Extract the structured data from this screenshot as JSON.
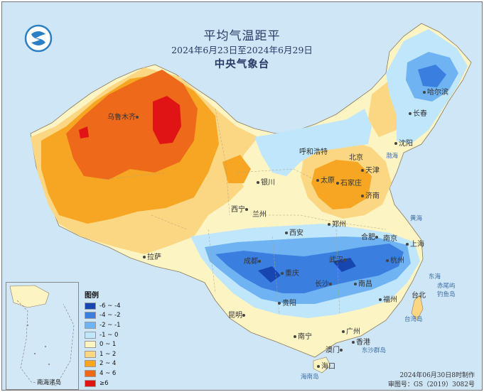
{
  "title": "平均气温距平",
  "period": "2024年6月23日至2024年6月29日",
  "agency": "中央气象台",
  "legend": {
    "title": "图例",
    "items": [
      {
        "label": "-6 ~ -4",
        "color": "#1746b0"
      },
      {
        "label": "-4 ~ -2",
        "color": "#3a7fe0"
      },
      {
        "label": "-2 ~ -1",
        "color": "#6fb3f2"
      },
      {
        "label": "-1 ~ 0",
        "color": "#bfe6fb"
      },
      {
        "label": "0 ~ 1",
        "color": "#fdf4c4"
      },
      {
        "label": "1 ~ 2",
        "color": "#fbd783"
      },
      {
        "label": "2 ~ 4",
        "color": "#f6a623"
      },
      {
        "label": "4 ~ 6",
        "color": "#ee6a1a"
      },
      {
        "label": "≥6",
        "color": "#e01414"
      }
    ]
  },
  "inset_label": "南海诸岛",
  "footer": {
    "made": "2024年06月30日8时制作",
    "review": "审图号：GS（2019）3082号"
  },
  "cities": [
    {
      "name": "乌鲁木齐"
    },
    {
      "name": "哈尔滨"
    },
    {
      "name": "长春"
    },
    {
      "name": "沈阳"
    },
    {
      "name": "呼和浩特"
    },
    {
      "name": "北京"
    },
    {
      "name": "天津"
    },
    {
      "name": "银川"
    },
    {
      "name": "太原"
    },
    {
      "name": "石家庄"
    },
    {
      "name": "济南"
    },
    {
      "name": "西宁"
    },
    {
      "name": "兰州"
    },
    {
      "name": "郑州"
    },
    {
      "name": "西安"
    },
    {
      "name": "合肥"
    },
    {
      "name": "南京"
    },
    {
      "name": "上海"
    },
    {
      "name": "拉萨"
    },
    {
      "name": "成都"
    },
    {
      "name": "武汉"
    },
    {
      "name": "杭州"
    },
    {
      "name": "重庆"
    },
    {
      "name": "长沙"
    },
    {
      "name": "南昌"
    },
    {
      "name": "贵阳"
    },
    {
      "name": "福州"
    },
    {
      "name": "台北"
    },
    {
      "name": "昆明"
    },
    {
      "name": "南宁"
    },
    {
      "name": "广州"
    },
    {
      "name": "香港"
    },
    {
      "name": "澳门"
    },
    {
      "name": "海口"
    }
  ],
  "seas": [
    {
      "name": "渤海"
    },
    {
      "name": "黄海"
    },
    {
      "name": "东海"
    },
    {
      "name": "台湾岛"
    },
    {
      "name": "东沙群岛"
    },
    {
      "name": "海南岛"
    },
    {
      "name": "赤尾屿"
    },
    {
      "name": "钓鱼岛"
    }
  ]
}
